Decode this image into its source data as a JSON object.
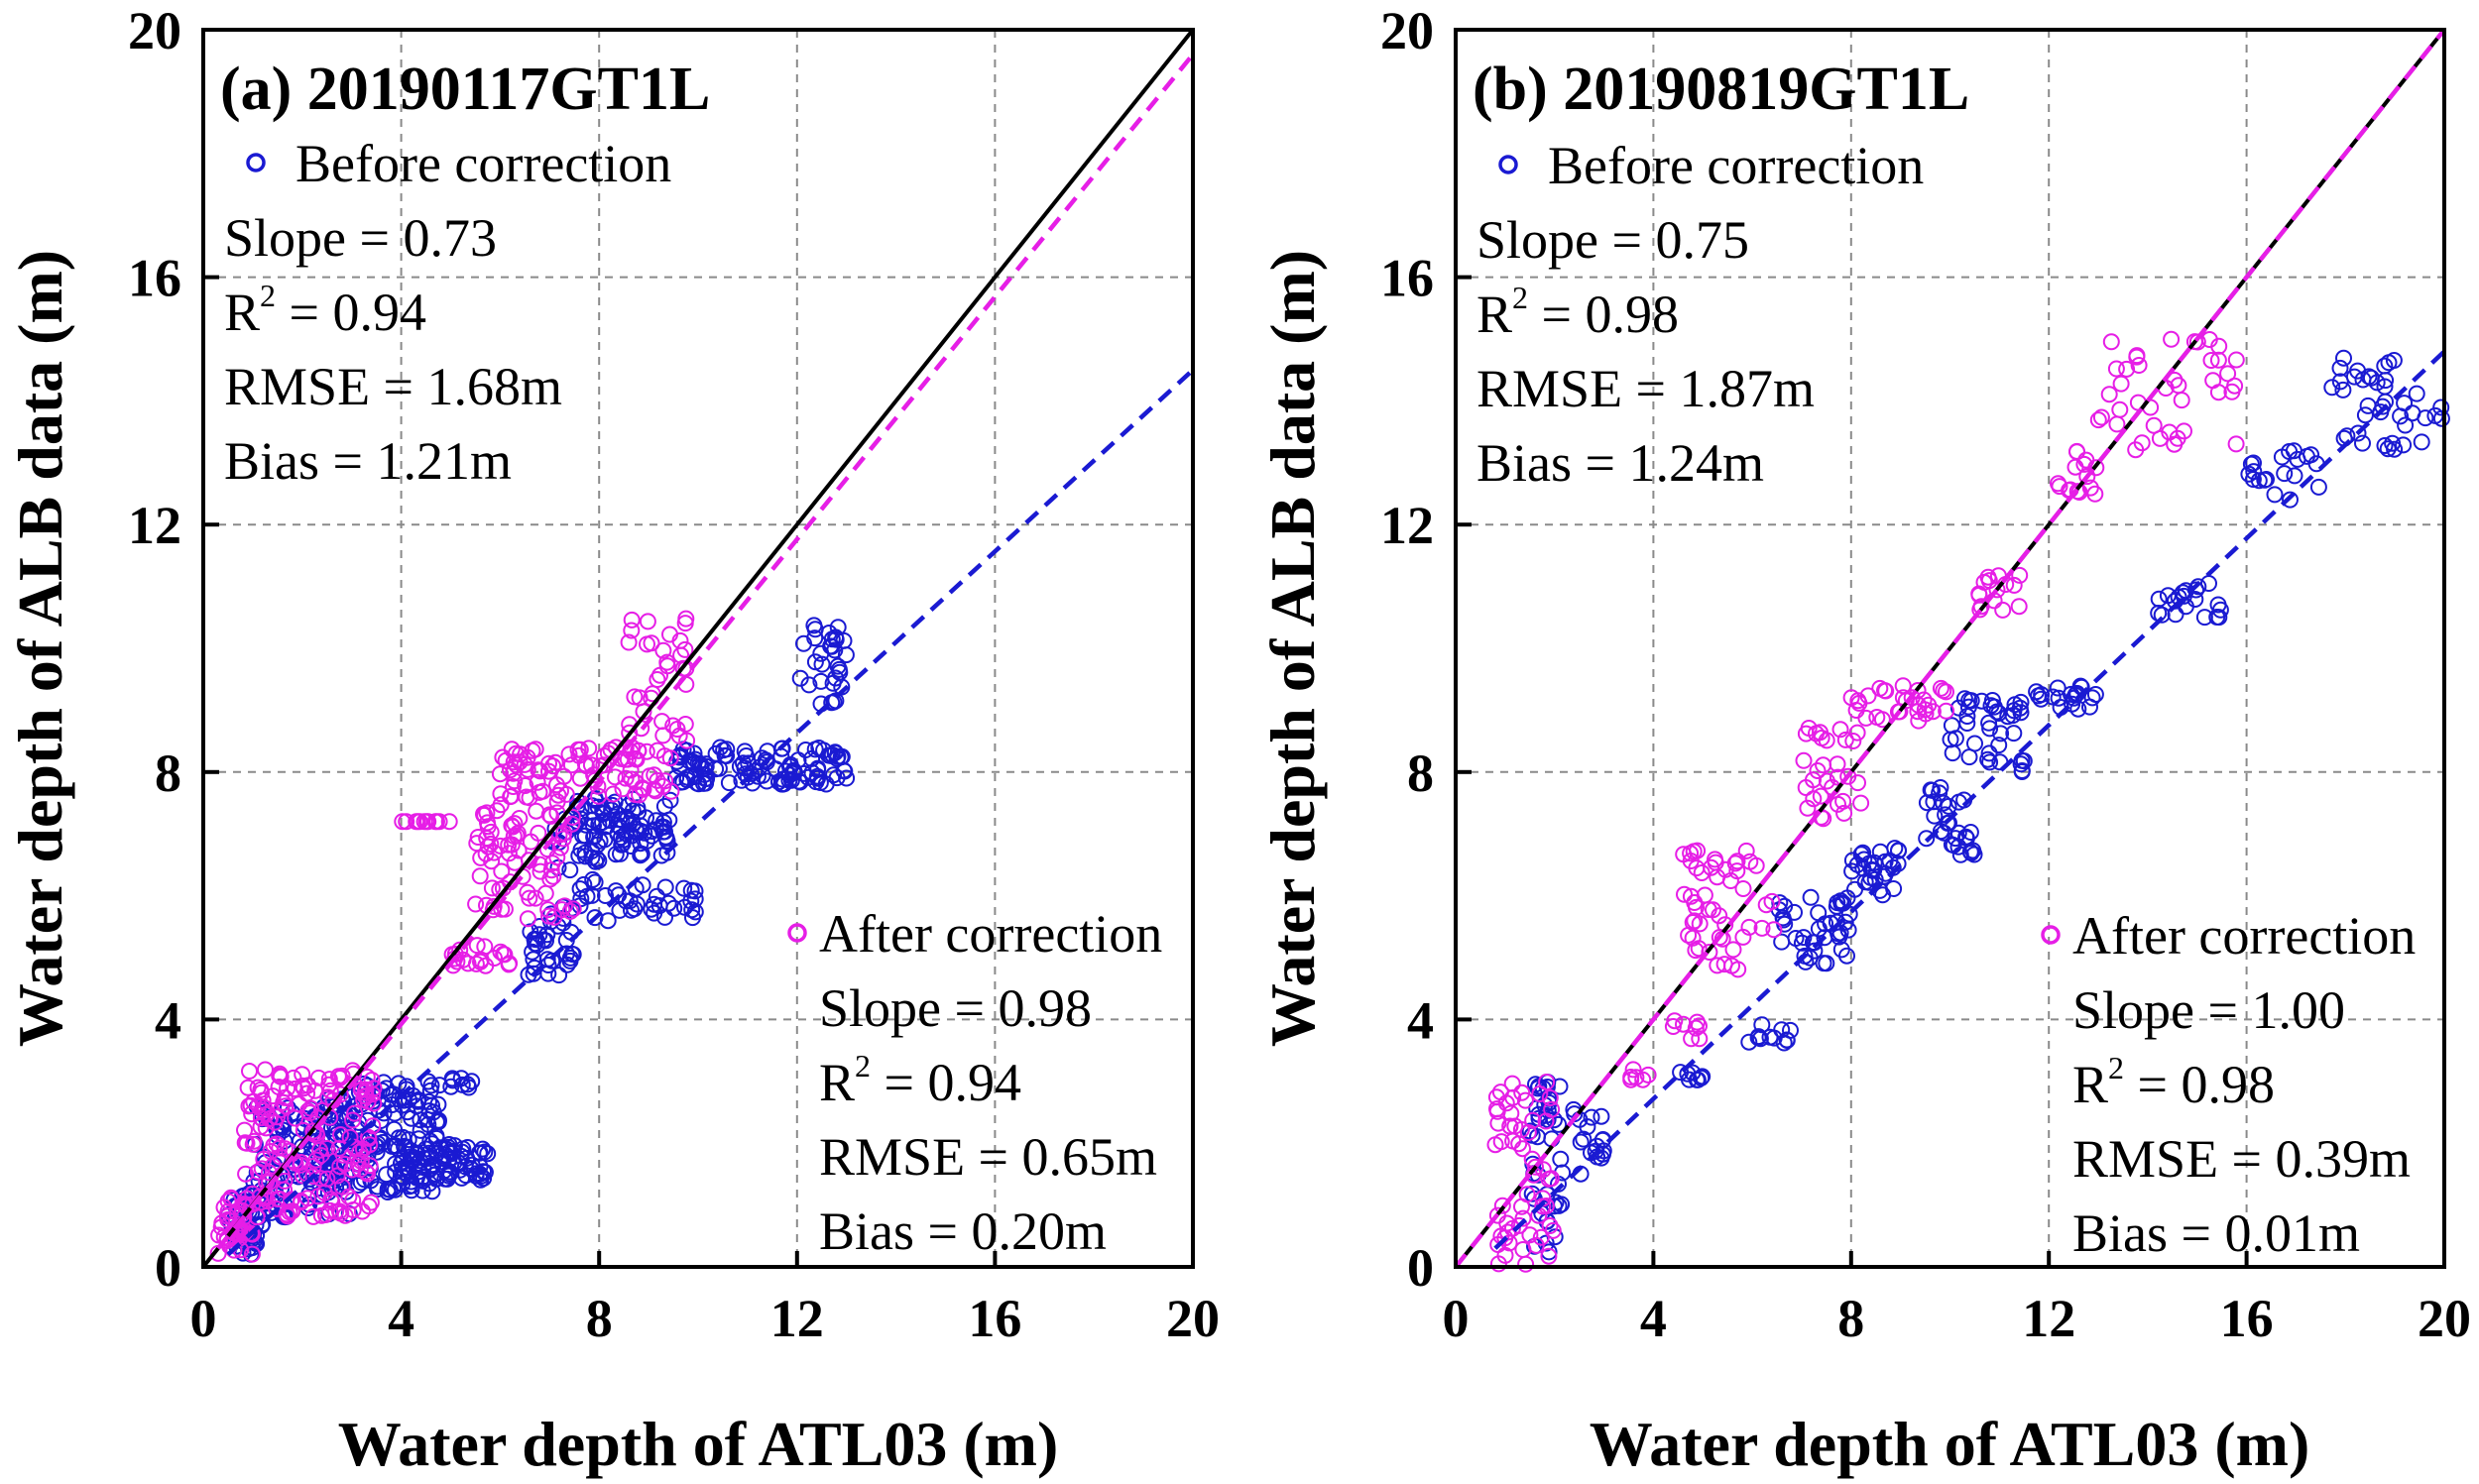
{
  "chart_data": [
    {
      "type": "scatter",
      "title": "(a) 20190117GT1L",
      "xlabel": "Water depth of ATL03 (m)",
      "ylabel": "Water depth of ALB data (m)",
      "xlim": [
        0,
        20
      ],
      "ylim": [
        0,
        20
      ],
      "xticks": [
        "0",
        "4",
        "8",
        "12",
        "16",
        "20"
      ],
      "yticks": [
        "0",
        "4",
        "8",
        "12",
        "16",
        "20"
      ],
      "grid": true,
      "reference_line": {
        "name": "1:1 line",
        "color": "#000000",
        "slope": 1,
        "intercept": 0
      },
      "series": [
        {
          "name": "Before correction",
          "color": "#1a1ad2",
          "stats": {
            "slope_label": "Slope = 0.73",
            "r2_label": "R",
            "r2_value": " = 0.94",
            "rmse_label": "RMSE = 1.68m",
            "bias_label": "Bias = 1.21m"
          },
          "fit": {
            "x": [
              0.5,
              20
            ],
            "y": [
              0.2,
              14.5
            ]
          },
          "clusters": [
            [
              0.5,
              1.2,
              0.2,
              1.2,
              50
            ],
            [
              1.0,
              3.0,
              0.8,
              2.6,
              110
            ],
            [
              2.5,
              4.8,
              1.2,
              3.0,
              160
            ],
            [
              4.0,
              5.8,
              1.4,
              2.0,
              70
            ],
            [
              5.0,
              5.5,
              2.9,
              3.1,
              8
            ],
            [
              6.5,
              7.5,
              4.7,
              5.6,
              30
            ],
            [
              7.0,
              8.5,
              5.5,
              7.3,
              40
            ],
            [
              7.5,
              9.5,
              6.6,
              7.6,
              80
            ],
            [
              8.5,
              10.0,
              5.6,
              6.2,
              25
            ],
            [
              9.5,
              13.0,
              7.8,
              8.4,
              110
            ],
            [
              12.0,
              13.0,
              9.1,
              10.5,
              30
            ]
          ]
        },
        {
          "name": "After correction",
          "color": "#e61ee6",
          "stats": {
            "slope_label": "Slope = 0.98",
            "r2_label": "R",
            "r2_value": " = 0.94",
            "rmse_label": "RMSE = 0.65m",
            "bias_label": "Bias = 0.20m"
          },
          "fit": {
            "x": [
              0.3,
              20
            ],
            "y": [
              0.3,
              19.6
            ]
          },
          "clusters": [
            [
              0.3,
              1.0,
              0.2,
              1.2,
              40
            ],
            [
              0.8,
              3.5,
              0.8,
              3.2,
              180
            ],
            [
              4.0,
              5.0,
              7.2,
              7.2,
              12
            ],
            [
              5.0,
              6.2,
              4.8,
              5.2,
              20
            ],
            [
              5.5,
              7.5,
              5.6,
              7.6,
              80
            ],
            [
              6.0,
              9.5,
              7.6,
              8.4,
              90
            ],
            [
              8.5,
              9.8,
              8.5,
              10.5,
              35
            ]
          ]
        }
      ]
    },
    {
      "type": "scatter",
      "title": "(b) 20190819GT1L",
      "xlabel": "Water depth of ATL03 (m)",
      "ylabel": "Water depth of ALB data (m)",
      "xlim": [
        0,
        20
      ],
      "ylim": [
        0,
        20
      ],
      "xticks": [
        "0",
        "4",
        "8",
        "12",
        "16",
        "20"
      ],
      "yticks": [
        "0",
        "4",
        "8",
        "12",
        "16",
        "20"
      ],
      "grid": true,
      "reference_line": {
        "name": "1:1 line",
        "color": "#000000",
        "slope": 1,
        "intercept": 0
      },
      "series": [
        {
          "name": "Before correction",
          "color": "#1a1ad2",
          "stats": {
            "slope_label": "Slope = 0.75",
            "r2_label": "R",
            "r2_value": " = 0.98",
            "rmse_label": "RMSE = 1.87m",
            "bias_label": "Bias = 1.24m"
          },
          "fit": {
            "x": [
              0.8,
              20
            ],
            "y": [
              0.3,
              14.8
            ]
          },
          "clusters": [
            [
              1.5,
              2.2,
              0.0,
              3.0,
              40
            ],
            [
              1.8,
              3.0,
              1.5,
              2.6,
              20
            ],
            [
              4.5,
              5.0,
              3.0,
              3.2,
              8
            ],
            [
              5.8,
              6.8,
              3.6,
              4.0,
              12
            ],
            [
              6.5,
              8.0,
              4.8,
              6.0,
              40
            ],
            [
              8.0,
              9.0,
              6.0,
              6.8,
              30
            ],
            [
              9.5,
              10.5,
              6.6,
              7.8,
              30
            ],
            [
              10.0,
              11.5,
              8.0,
              9.2,
              40
            ],
            [
              11.5,
              13.2,
              9.0,
              9.4,
              20
            ],
            [
              14.2,
              15.5,
              10.5,
              11.2,
              20
            ],
            [
              16.0,
              17.5,
              12.4,
              13.2,
              20
            ],
            [
              17.5,
              20.0,
              13.2,
              14.7,
              40
            ]
          ]
        },
        {
          "name": "After correction",
          "color": "#e61ee6",
          "stats": {
            "slope_label": "Slope = 1.00",
            "r2_label": "R",
            "r2_value": " = 0.98",
            "rmse_label": "RMSE = 0.39m",
            "bias_label": "Bias = 0.01m"
          },
          "fit": {
            "x": [
              0,
              20
            ],
            "y": [
              0,
              20
            ]
          },
          "clusters": [
            [
              0.8,
              2.0,
              0.0,
              3.0,
              60
            ],
            [
              3.5,
              4.0,
              3.0,
              3.2,
              6
            ],
            [
              4.2,
              5.0,
              3.6,
              4.0,
              8
            ],
            [
              4.5,
              6.5,
              4.8,
              6.8,
              50
            ],
            [
              7.0,
              8.2,
              7.2,
              8.8,
              30
            ],
            [
              8.0,
              10.0,
              8.8,
              9.4,
              30
            ],
            [
              10.5,
              11.5,
              10.6,
              11.2,
              15
            ],
            [
              12.0,
              13.0,
              12.4,
              13.2,
              15
            ],
            [
              13.0,
              15.8,
              13.2,
              15.0,
              40
            ]
          ]
        }
      ]
    }
  ]
}
